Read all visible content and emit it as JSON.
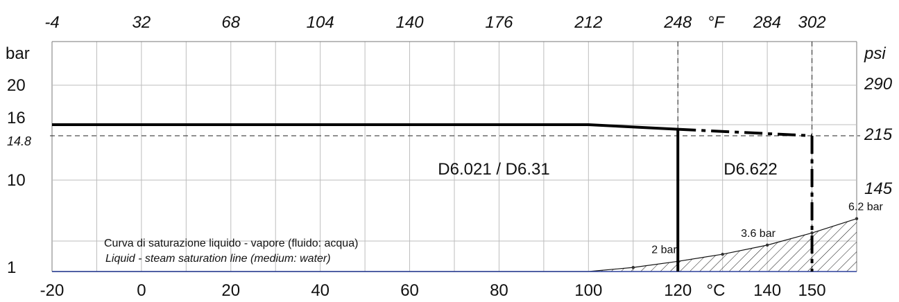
{
  "chart_data": {
    "type": "line",
    "x_unit_label": "°C",
    "x_top_unit_label": "°F",
    "y_left_unit_label": "bar",
    "y_right_unit_label": "psi",
    "x_celsius_ticks": [
      -20,
      0,
      20,
      40,
      60,
      80,
      100,
      120,
      140,
      150
    ],
    "x_fahrenheit_ticks": [
      {
        "c": -20,
        "label": "-4"
      },
      {
        "c": 0,
        "label": "32"
      },
      {
        "c": 20,
        "label": "68"
      },
      {
        "c": 40,
        "label": "104"
      },
      {
        "c": 60,
        "label": "140"
      },
      {
        "c": 80,
        "label": "176"
      },
      {
        "c": 100,
        "label": "212"
      },
      {
        "c": 120,
        "label": "248"
      },
      {
        "c": 140,
        "label": "284"
      },
      {
        "c": 150,
        "label": "302"
      }
    ],
    "y_left_ticks": [
      {
        "bar": 1,
        "label": "1"
      },
      {
        "bar": 10,
        "label": "10"
      },
      {
        "bar": 14.8,
        "label": "14.8"
      },
      {
        "bar": 16,
        "label": "16"
      },
      {
        "bar": 20,
        "label": "20"
      }
    ],
    "y_right_ticks": [
      {
        "bar": 10,
        "label": "145"
      },
      {
        "bar": 14.8,
        "label": "215"
      },
      {
        "bar": 20,
        "label": "290"
      }
    ],
    "xlim": [
      -20,
      160
    ],
    "ylim": [
      1,
      24
    ],
    "grid": true,
    "series": [
      {
        "name": "D6.021 / D6.31",
        "style": "solid",
        "points": [
          [
            -20,
            16
          ],
          [
            100,
            16
          ],
          [
            120,
            15.5
          ]
        ],
        "drop_at_x": 120
      },
      {
        "name": "D6.622",
        "style": "dash-dot",
        "points": [
          [
            120,
            15.5
          ],
          [
            150,
            14.8
          ]
        ],
        "drop_at_x": 150
      }
    ],
    "saturation_curve": {
      "label_it": "Curva di saturazione liquido - vapore (fluido: acqua)",
      "label_en": "Liquid - steam saturation line (medium: water)",
      "points": [
        [
          -20,
          1
        ],
        [
          100,
          1
        ],
        [
          110,
          1.4
        ],
        [
          120,
          2
        ],
        [
          130,
          2.7
        ],
        [
          140,
          3.6
        ],
        [
          150,
          4.8
        ],
        [
          160,
          6.2
        ]
      ]
    },
    "annotations": [
      {
        "text": "2 bar",
        "x": 120,
        "y": 2
      },
      {
        "text": "3.6 bar",
        "x": 140,
        "y": 3.6
      },
      {
        "text": "6.2 bar",
        "x": 160,
        "y": 6.2
      }
    ],
    "reference_lines": {
      "horizontal_bar": 14.8,
      "vertical_c": [
        120,
        150
      ]
    }
  }
}
